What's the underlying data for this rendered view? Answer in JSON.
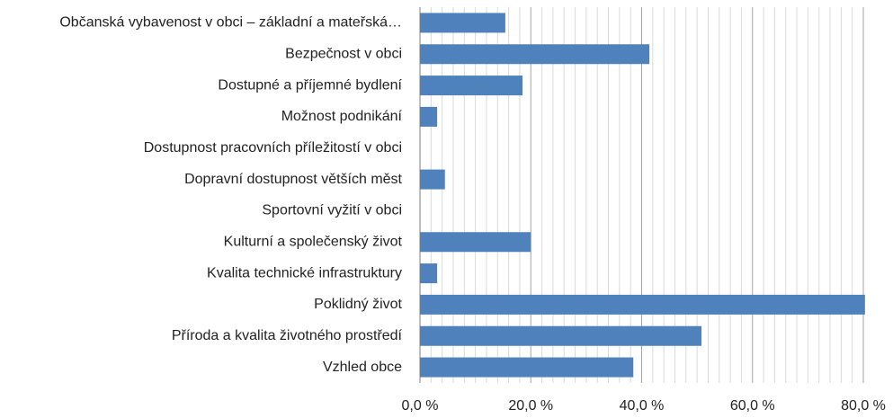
{
  "chart_data": {
    "type": "bar",
    "orientation": "horizontal",
    "categories": [
      "Občanská vybavenost v obci – základní a mateřská…",
      "Bezpečnost v obci",
      "Dostupné a příjemné bydlení",
      "Možnost podnikání",
      "Dostupnost pracovních příležitostí v obci",
      "Dopravní dostupnost větších měst",
      "Sportovní vyžití v obci",
      "Kulturní a společenský život",
      "Kvalita technické infrastruktury",
      "Poklidný život",
      "Příroda a kvalita životného prostředí",
      "Vzhled obce"
    ],
    "values": [
      15.4,
      41.4,
      18.5,
      3.1,
      0,
      4.5,
      0,
      20.0,
      3.1,
      80.3,
      50.8,
      38.5
    ],
    "color": "#4f81bd",
    "xlim": [
      0,
      80
    ],
    "xticks": [
      {
        "value": 0,
        "label": "0,0 %"
      },
      {
        "value": 20,
        "label": "20,0 %"
      },
      {
        "value": 40,
        "label": "40,0 %"
      },
      {
        "value": 60,
        "label": "60,0 %"
      },
      {
        "value": 80,
        "label": "80,0 %"
      }
    ],
    "minor_xticks": [
      2,
      4,
      6,
      8,
      10,
      12,
      14,
      16,
      18,
      22,
      24,
      26,
      28,
      30,
      32,
      34,
      36,
      38,
      42,
      44,
      46,
      48,
      50,
      52,
      54,
      56,
      58,
      62,
      64,
      66,
      68,
      70,
      72,
      74,
      76,
      78
    ],
    "grid": true
  }
}
